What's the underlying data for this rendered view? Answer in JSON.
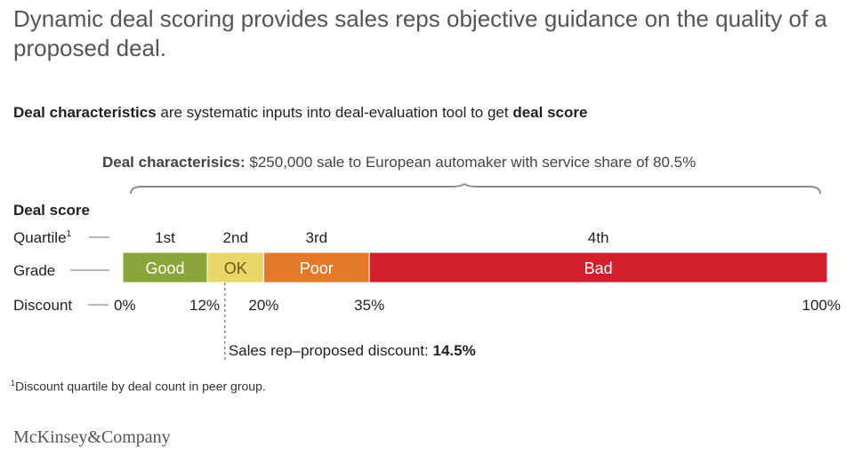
{
  "title": "Dynamic deal scoring provides sales reps objective guidance on the quality of a proposed deal.",
  "subtitle": {
    "bold1": "Deal characteristics",
    "text": " are systematic inputs into deal-evaluation tool to get ",
    "bold2": "deal score"
  },
  "deal_characteristics": {
    "label": "Deal characterisics:",
    "text": " $250,000 sale to European automaker with service share of 80.5%"
  },
  "row_labels": {
    "deal_score": "Deal score",
    "quartile": "Quartile",
    "quartile_sup": "1",
    "grade": "Grade",
    "discount": "Discount"
  },
  "proposed": {
    "label": "Sales rep–proposed discount: ",
    "value_text": "14.5%"
  },
  "footnote": {
    "sup": "1",
    "text": "Discount quartile by deal count in peer group."
  },
  "brand": "McKinsey&Company",
  "colors": {
    "good": "#8aa63a",
    "ok": "#e8d667",
    "poor": "#e37a2a",
    "bad": "#d21f2c"
  },
  "chart_data": {
    "type": "bar",
    "orientation": "horizontal-stacked",
    "xlim": [
      0,
      100
    ],
    "unit": "%",
    "segments": [
      {
        "quartile": "1st",
        "grade": "Good",
        "start": 0,
        "end": 12,
        "color": "#8aa63a",
        "text_color": "#ffffff"
      },
      {
        "quartile": "2nd",
        "grade": "OK",
        "start": 12,
        "end": 20,
        "color": "#e8d667",
        "text_color": "#6b5a1e"
      },
      {
        "quartile": "3rd",
        "grade": "Poor",
        "start": 20,
        "end": 35,
        "color": "#e37a2a",
        "text_color": "#ffffff"
      },
      {
        "quartile": "4th",
        "grade": "Bad",
        "start": 35,
        "end": 100,
        "color": "#d21f2c",
        "text_color": "#ffffff"
      }
    ],
    "discount_ticks": [
      "0%",
      "12%",
      "20%",
      "35%",
      "100%"
    ],
    "tick_values": [
      0,
      12,
      20,
      35,
      100
    ],
    "proposed_discount": 14.5
  }
}
